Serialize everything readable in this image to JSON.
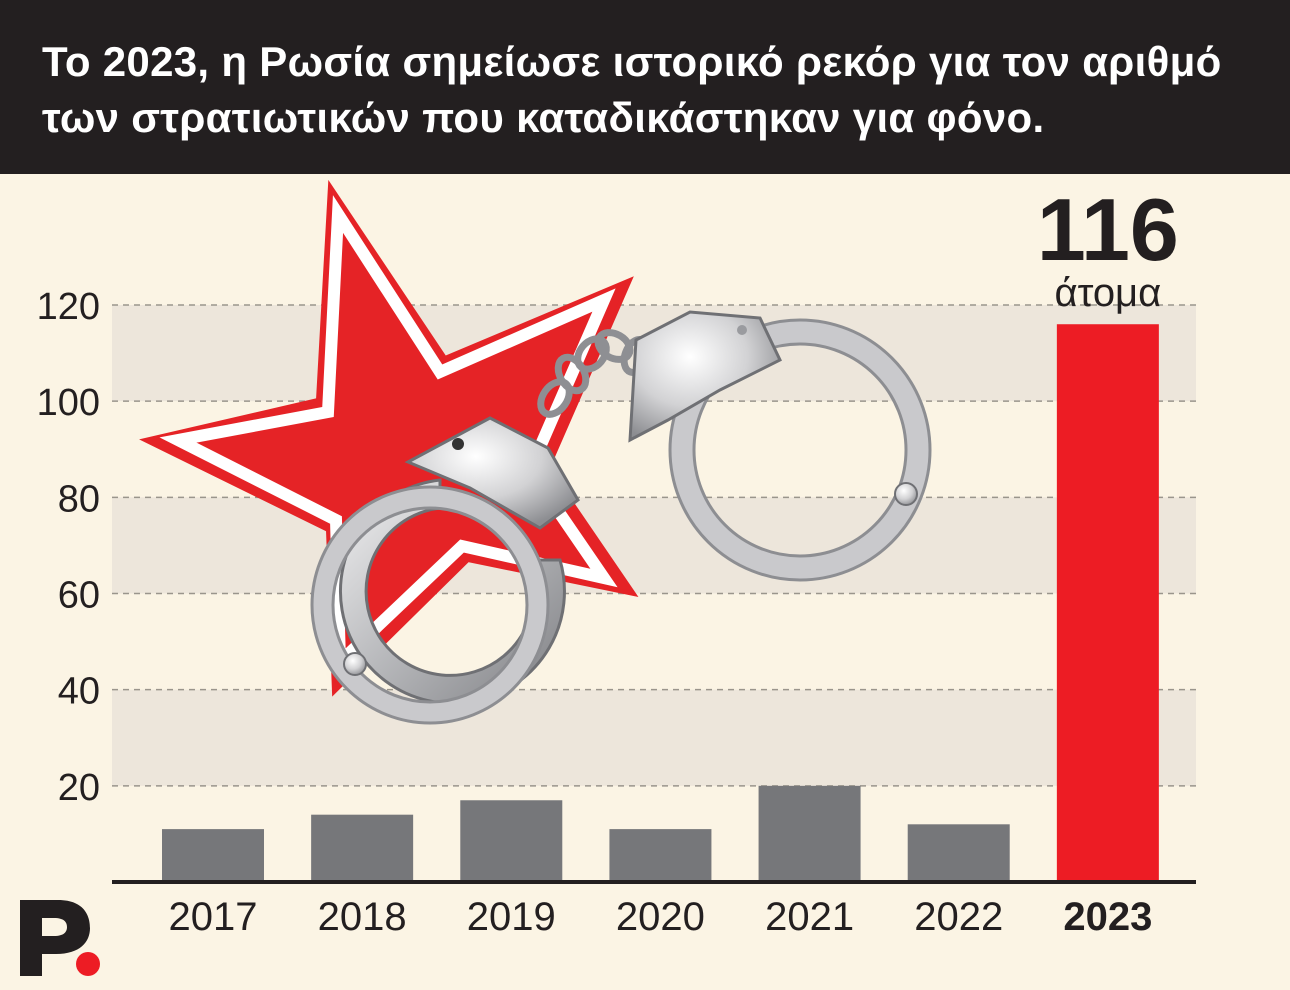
{
  "header": {
    "title_line1": "Το 2023, η Ρωσία σημείωσε ιστορικό ρεκόρ για τον αριθμό",
    "title_line2": "των στρατιωτικών που καταδικάστηκαν για φόνο."
  },
  "chart_data": {
    "type": "bar",
    "categories": [
      "2017",
      "2018",
      "2019",
      "2020",
      "2021",
      "2022",
      "2023"
    ],
    "values": [
      11,
      14,
      17,
      11,
      20,
      12,
      116
    ],
    "highlight_category": "2023",
    "highlight_label": "116",
    "highlight_unit": "άτομα",
    "yticks": [
      20,
      40,
      60,
      80,
      100,
      120
    ],
    "ylim": [
      0,
      120
    ],
    "grid": "dashed horizontal",
    "title": "",
    "xlabel": "",
    "ylabel": ""
  },
  "colors": {
    "header_bg": "#231f20",
    "background": "#fbf4e4",
    "band": "#ede6db",
    "bar": "#76777a",
    "highlight_bar": "#ed1c24",
    "text": "#231f20",
    "star": "#e52326"
  },
  "illustration": {
    "icon": "red-star-with-handcuffs"
  },
  "logo": {
    "icon": "p-logo-with-red-dot"
  }
}
